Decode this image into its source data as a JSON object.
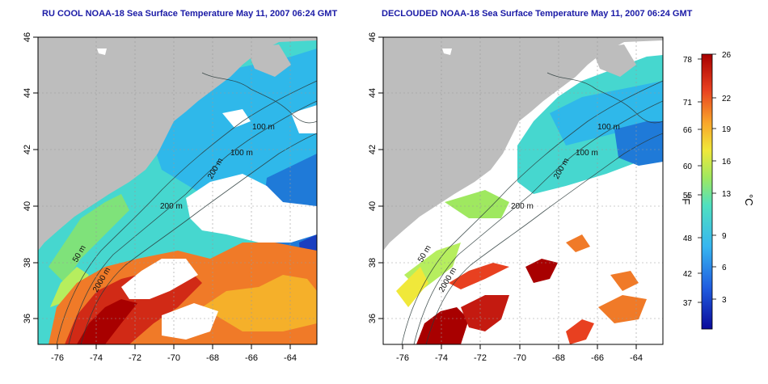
{
  "panels": [
    {
      "title": "RU COOL NOAA-18 Sea Surface Temperature May 11, 2007 06:24 GMT",
      "contour_labels": [
        "100 m",
        "100 m",
        "200 m",
        "200 m",
        "2000 m",
        "50 m"
      ]
    },
    {
      "title": "DECLOUDED NOAA-18 Sea Surface Temperature May 11, 2007 06:24 GMT",
      "contour_labels": [
        "100 m",
        "100 m",
        "200 m",
        "200 m",
        "2000 m",
        "50 m"
      ]
    }
  ],
  "axes": {
    "lon_ticks": [
      "-76",
      "-74",
      "-72",
      "-70",
      "-68",
      "-66",
      "-64"
    ],
    "lat_ticks": [
      "46",
      "44",
      "42",
      "40",
      "38",
      "36"
    ]
  },
  "colorbar": {
    "fahrenheit_label": "°F",
    "celsius_label": "°C",
    "fahrenheit_ticks": [
      "78",
      "71",
      "66",
      "60",
      "55",
      "48",
      "42",
      "37"
    ],
    "celsius_ticks": [
      "26",
      "22",
      "19",
      "16",
      "13",
      "9",
      "6",
      "3"
    ]
  },
  "colors": {
    "land": "#bdbdbd",
    "title": "#1a1aa6",
    "cold": "#0a0a9a",
    "warm": "#a80000"
  }
}
